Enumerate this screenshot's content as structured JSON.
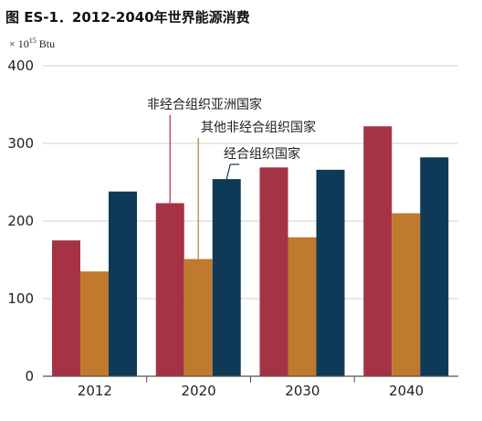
{
  "chart_data": {
    "type": "bar",
    "title": "图 ES-1．2012-2040年世界能源消费",
    "unit_prefix": "× 10",
    "unit_exp": "15",
    "unit_suffix": " Btu",
    "categories": [
      "2012",
      "2020",
      "2030",
      "2040"
    ],
    "series": [
      {
        "name": "非经合组织亚洲国家",
        "values": [
          175,
          223,
          269,
          322
        ],
        "color": "#A63345"
      },
      {
        "name": "其他非经合组织国家",
        "values": [
          135,
          151,
          179,
          210
        ],
        "color": "#C07A2E"
      },
      {
        "name": "经合组织国家",
        "values": [
          238,
          254,
          266,
          282
        ],
        "color": "#0E3A57"
      }
    ],
    "ylim": [
      0,
      400
    ],
    "yticks": [
      "0",
      "100",
      "200",
      "300",
      "400"
    ],
    "grid": true,
    "legend": "annotations"
  }
}
